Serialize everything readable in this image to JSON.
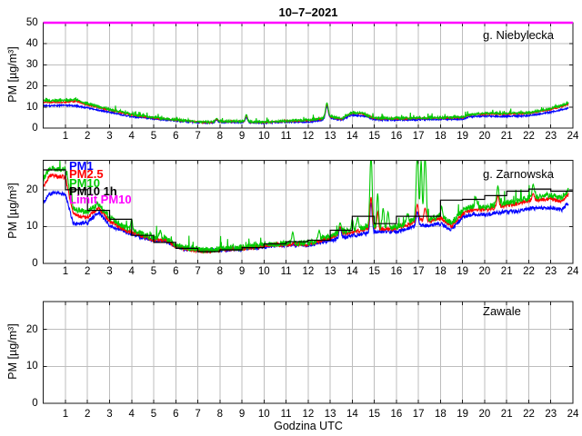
{
  "title": "10–7–2021",
  "xlabel": "Godzina UTC",
  "ylabel": "PM [µg/m³]",
  "x_ticks": [
    1,
    2,
    3,
    4,
    5,
    6,
    7,
    8,
    9,
    10,
    11,
    12,
    13,
    14,
    15,
    16,
    17,
    18,
    19,
    20,
    21,
    22,
    23,
    24
  ],
  "x_range": [
    0,
    24
  ],
  "data_end_hour": 23.8,
  "noise_seed": 20217,
  "colors": {
    "pm1": "#0000ff",
    "pm25": "#ff0000",
    "pm10": "#00c800",
    "pm10_1h": "#000000",
    "limit": "#ff00ff",
    "grid": "#bdbdbd",
    "frame": "#1a1a1a",
    "background": "#ffffff",
    "text": "#000000"
  },
  "legend": {
    "items": [
      {
        "label": "PM1",
        "color": "#0000ff"
      },
      {
        "label": "PM2.5",
        "color": "#ff0000"
      },
      {
        "label": "PM10",
        "color": "#00c800"
      },
      {
        "label": "PM10 1h",
        "color": "#000000"
      },
      {
        "label": "Limit PM10",
        "color": "#ff00ff"
      }
    ]
  },
  "chart_data": [
    {
      "type": "line",
      "station": "g. Niebylecka",
      "ylim": [
        0,
        50
      ],
      "y_ticks": [
        0,
        10,
        20,
        30,
        40,
        50
      ],
      "limit_line": {
        "label": "Limit PM10",
        "value": 50
      },
      "anchor_x": [
        0,
        1,
        1.5,
        2,
        3,
        4,
        5,
        6,
        7,
        7.5,
        8,
        9,
        9.5,
        10,
        11,
        12,
        12.5,
        13,
        13.5,
        14,
        14.5,
        15,
        16,
        17,
        18,
        19,
        19.3,
        20,
        21,
        22,
        23,
        23.5,
        23.8
      ],
      "series": [
        {
          "name": "PM1",
          "color": "#0000ff",
          "noise": 0.4,
          "values": [
            10.5,
            10.8,
            10.5,
            9.5,
            7.5,
            5.5,
            4.3,
            3.5,
            2.6,
            2.4,
            2.8,
            2.8,
            2.6,
            2.4,
            2.9,
            2.8,
            3.6,
            4.8,
            3.9,
            6.2,
            5.8,
            4.0,
            3.8,
            4.0,
            4.2,
            4.3,
            5.3,
            5.6,
            5.6,
            5.9,
            7.6,
            8.8,
            9.6
          ]
        },
        {
          "name": "PM2.5",
          "color": "#ff0000",
          "noise": 0.35,
          "values": [
            12.3,
            12.3,
            12.8,
            10.9,
            8.6,
            6.2,
            4.8,
            3.9,
            2.9,
            2.7,
            3.2,
            3.1,
            2.9,
            2.7,
            3.3,
            3.6,
            4.2,
            5.3,
            4.3,
            7.2,
            6.7,
            4.6,
            4.4,
            4.6,
            4.8,
            5.0,
            6.2,
            6.7,
            6.7,
            7.0,
            8.9,
            10.3,
            11.3
          ]
        },
        {
          "name": "PM10",
          "color": "#00c800",
          "noise": 0.55,
          "spiky": true,
          "values": [
            13,
            13,
            13.5,
            11.5,
            9,
            6.5,
            5,
            4,
            3,
            2.8,
            3.3,
            3.2,
            3,
            2.8,
            3.4,
            3.8,
            4.4,
            5.6,
            4.5,
            7.5,
            7,
            4.8,
            4.6,
            4.8,
            5,
            5.2,
            6.5,
            7,
            7,
            7.3,
            9.3,
            10.8,
            11.8
          ]
        }
      ],
      "spikes": [
        {
          "x": 7.85,
          "w": 0.05,
          "peaks": {
            "PM10": 4.6,
            "PM2.5": 4.2,
            "PM1": 3.8
          }
        },
        {
          "x": 9.2,
          "w": 0.05,
          "peaks": {
            "PM10": 6.4,
            "PM2.5": 5.8,
            "PM1": 5.0
          }
        },
        {
          "x": 12.85,
          "w": 0.06,
          "peaks": {
            "PM10": 11.9,
            "PM2.5": 11.2,
            "PM1": 10.2
          }
        }
      ]
    },
    {
      "type": "line",
      "station": "g. Zarnowska",
      "ylim": [
        0,
        28
      ],
      "y_ticks": [
        0,
        10,
        20
      ],
      "anchor_x": [
        0,
        0.3,
        0.7,
        1,
        1.35,
        1.5,
        2,
        2.5,
        3,
        3.5,
        4,
        4.5,
        5,
        5.5,
        6,
        6.5,
        7,
        7.5,
        8,
        9,
        10,
        11,
        12,
        13,
        13.5,
        14,
        14.5,
        15,
        15.5,
        16,
        16.5,
        17,
        17.5,
        18,
        18.5,
        19,
        19.5,
        20,
        20.5,
        21,
        21.5,
        22,
        22.5,
        23,
        23.5,
        23.8
      ],
      "series": [
        {
          "name": "PM1",
          "color": "#0000ff",
          "noise": 0.55,
          "values": [
            16.5,
            19,
            19,
            18.8,
            11,
            10.8,
            11,
            14,
            10.3,
            9.1,
            8.2,
            7,
            6.2,
            6.2,
            4.5,
            3.8,
            3.6,
            3.4,
            3.6,
            3.9,
            4.5,
            5,
            5,
            6.2,
            7,
            7.5,
            8,
            8.5,
            8.8,
            8.5,
            9.5,
            10.5,
            10.2,
            10.8,
            9.2,
            12.5,
            13.5,
            13.2,
            13.8,
            14,
            14.2,
            14.8,
            15,
            15.2,
            14.5,
            16.5
          ]
        },
        {
          "name": "PM2.5",
          "color": "#ff0000",
          "noise": 0.55,
          "values": [
            21,
            24,
            23.5,
            23.5,
            13.5,
            13,
            12.5,
            15,
            11.6,
            9.6,
            8.4,
            7.4,
            6.4,
            6.4,
            4.7,
            3.9,
            3.5,
            3.2,
            3.7,
            4,
            4.7,
            5.2,
            5.2,
            7,
            8,
            8.5,
            9.2,
            9.5,
            9.3,
            9.5,
            10.5,
            11.8,
            11.3,
            12.2,
            10.2,
            13.5,
            14.8,
            14.5,
            15.2,
            15.7,
            16.2,
            17,
            17.3,
            17.5,
            16.8,
            18.8
          ]
        },
        {
          "name": "PM10",
          "color": "#00c800",
          "noise": 0.8,
          "spiky": true,
          "values": [
            23,
            26,
            25.5,
            25.5,
            15,
            14.5,
            14,
            16,
            12.6,
            10.5,
            9,
            8,
            7,
            7,
            5,
            4.2,
            3.8,
            3.5,
            4,
            4.3,
            5,
            5.5,
            5.5,
            7.5,
            8.5,
            9,
            9.8,
            10,
            9.8,
            10,
            11,
            12.5,
            12,
            13,
            10.8,
            14.5,
            15.5,
            15.2,
            16,
            16.5,
            17,
            17.8,
            18.2,
            18.5,
            17.8,
            20
          ]
        }
      ],
      "step_series": {
        "name": "PM10 1h",
        "color": "#000000",
        "hourly": [
          25.4,
          20,
          14.4,
          12,
          7.6,
          5.7,
          4.1,
          3.2,
          3.7,
          4.3,
          5.3,
          5.9,
          6.3,
          9,
          12.8,
          10.8,
          12.8,
          12.8,
          17.2,
          17.4,
          18.4,
          19.6,
          20.2,
          19.6
        ]
      },
      "spikes": [
        {
          "x": 4.0,
          "w": 0.04,
          "peaks": {
            "PM10": 12
          }
        },
        {
          "x": 5.3,
          "w": 0.04,
          "peaks": {
            "PM10": 9
          }
        },
        {
          "x": 11.3,
          "w": 0.04,
          "peaks": {
            "PM10": 8.5
          }
        },
        {
          "x": 12.5,
          "w": 0.04,
          "peaks": {
            "PM10": 9
          }
        },
        {
          "x": 13.45,
          "w": 0.05,
          "peaks": {
            "PM10": 11,
            "PM2.5": 10,
            "PM1": 9.8
          }
        },
        {
          "x": 14.0,
          "w": 0.04,
          "peaks": {
            "PM10": 12
          }
        },
        {
          "x": 14.25,
          "w": 0.04,
          "peaks": {
            "PM10": 12.5
          }
        },
        {
          "x": 14.85,
          "w": 0.05,
          "peaks": {
            "PM10": 30,
            "PM2.5": 18,
            "PM1": 16.5
          }
        },
        {
          "x": 15.15,
          "w": 0.04,
          "peaks": {
            "PM10": 19,
            "PM2.5": 14
          }
        },
        {
          "x": 15.4,
          "w": 0.04,
          "peaks": {
            "PM10": 15
          }
        },
        {
          "x": 15.62,
          "w": 0.04,
          "peaks": {
            "PM10": 14
          }
        },
        {
          "x": 16.5,
          "w": 0.04,
          "peaks": {
            "PM10": 13.5
          }
        },
        {
          "x": 16.95,
          "w": 0.05,
          "peaks": {
            "PM10": 30,
            "PM2.5": 16,
            "PM1": 14
          }
        },
        {
          "x": 17.12,
          "w": 0.04,
          "peaks": {
            "PM10": 28
          }
        },
        {
          "x": 17.3,
          "w": 0.05,
          "peaks": {
            "PM10": 29,
            "PM2.5": 15
          }
        },
        {
          "x": 18.05,
          "w": 0.04,
          "peaks": {
            "PM10": 15.5
          }
        },
        {
          "x": 19.6,
          "w": 0.04,
          "peaks": {
            "PM10": 18
          }
        },
        {
          "x": 20.6,
          "w": 0.05,
          "peaks": {
            "PM10": 21,
            "PM2.5": 18.5
          }
        },
        {
          "x": 22.2,
          "w": 0.05,
          "peaks": {
            "PM10": 21.5,
            "PM2.5": 19
          }
        }
      ]
    },
    {
      "type": "line",
      "station": "Zawale",
      "ylim": [
        0,
        27.5
      ],
      "y_ticks": [
        0,
        10,
        20
      ],
      "anchor_x": [],
      "series": [],
      "spikes": []
    }
  ]
}
